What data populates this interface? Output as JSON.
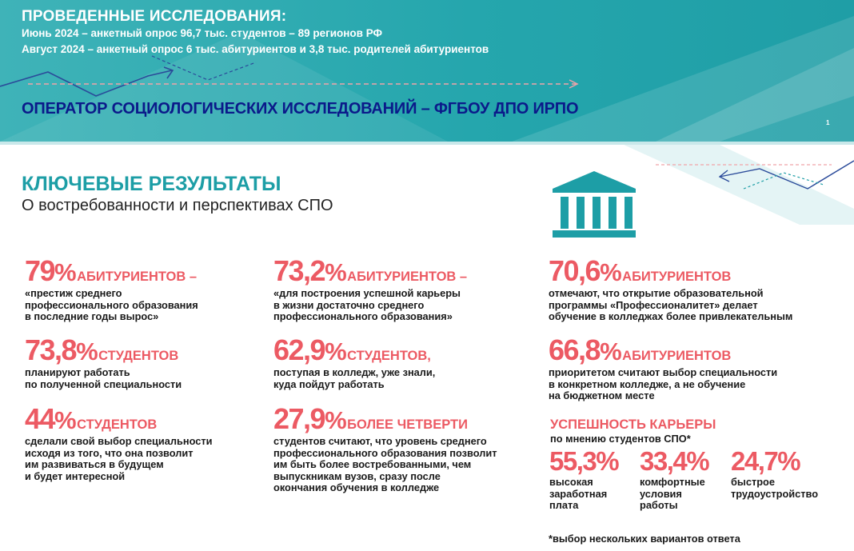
{
  "header": {
    "title": "ПРОВЕДЕННЫЕ ИССЛЕДОВАНИЯ:",
    "line1": "Июнь 2024 – анкетный опрос 96,7 тыс. студентов – 89 регионов РФ",
    "line2": "Август 2024 – анкетный опрос 6 тыс. абитуриентов и 3,8 тыс. родителей абитуриентов",
    "operator": "ОПЕРАТОР СОЦИОЛОГИЧЕСКИХ ИССЛЕДОВАНИЙ – ФГБОУ ДПО ИРПО",
    "page_number": "1"
  },
  "main": {
    "title": "КЛЮЧЕВЫЕ РЕЗУЛЬТАТЫ",
    "subtitle": "О востребованности и перспективах СПО"
  },
  "stats": [
    {
      "value": "79",
      "unit": "%",
      "label": "АБИТУРИЕНТОВ –",
      "desc": "«престиж среднего\nпрофессионального образования\nв последние годы вырос»"
    },
    {
      "value": "73,2",
      "unit": "%",
      "label": "АБИТУРИЕНТОВ –",
      "desc": "«для построения успешной карьеры\nв жизни достаточно среднего\nпрофессионального образования»"
    },
    {
      "value": "70,6",
      "unit": "%",
      "label": "АБИТУРИЕНТОВ",
      "desc": "отмечают, что открытие образовательной\nпрограммы «Профессионалитет» делает\nобучение в колледжах более привлекательным"
    },
    {
      "value": "73,8",
      "unit": "%",
      "label": "СТУДЕНТОВ",
      "desc": "планируют работать\nпо полученной специальности"
    },
    {
      "value": "62,9",
      "unit": "%",
      "label": "СТУДЕНТОВ,",
      "desc": "поступая в колледж, уже знали,\nкуда пойдут работать"
    },
    {
      "value": "66,8",
      "unit": "%",
      "label": "АБИТУРИЕНТОВ",
      "desc": "приоритетом считают выбор специальности\nв конкретном колледже, а не обучение\nна бюджетном месте"
    },
    {
      "value": "44",
      "unit": "%",
      "label": "СТУДЕНТОВ",
      "desc": "сделали свой выбор специальности\nисходя из того, что она позволит\nим развиваться в будущем\nи будет интересной"
    },
    {
      "value": "27,9",
      "unit": "%",
      "label": "БОЛЕЕ ЧЕТВЕРТИ",
      "desc": "студентов считают, что уровень среднего\nпрофессионального образования позволит\nим быть более востребованными, чем\nвыпускникам вузов, сразу после\nокончания обучения в колледже"
    }
  ],
  "career": {
    "title": "УСПЕШНОСТЬ КАРЬЕРЫ",
    "subtitle": "по мнению студентов СПО*",
    "items": [
      {
        "value": "55,3%",
        "desc": "высокая\nзаработная\nплата"
      },
      {
        "value": "33,4%",
        "desc": "комфортные\nусловия\nработы"
      },
      {
        "value": "24,7%",
        "desc": "быстрое\nтрудоустройство"
      }
    ]
  },
  "footnote": "*выбор нескольких вариантов ответа",
  "icons": {
    "building": "building-icon"
  },
  "colors": {
    "teal": "#1d9ea6",
    "accent_red": "#ec5a63",
    "operator_blue": "#0b1a8a"
  }
}
